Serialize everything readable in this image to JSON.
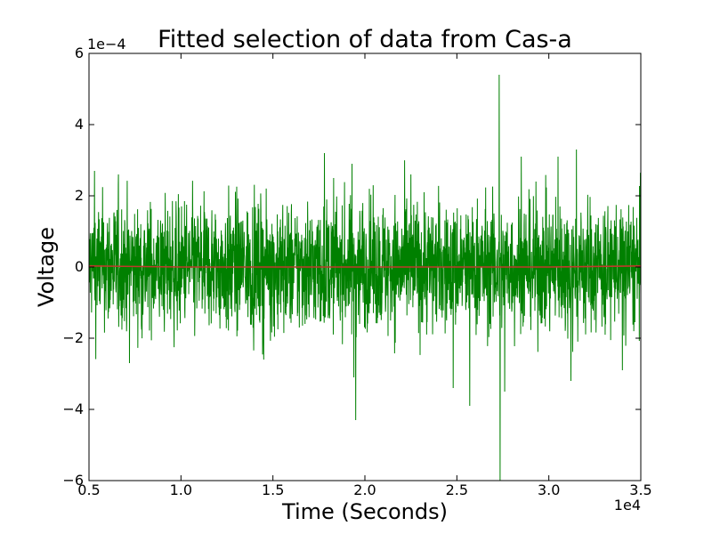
{
  "chart_data": {
    "type": "line",
    "title": "Fitted selection of data from Cas-a",
    "xlabel": "Time (Seconds)",
    "ylabel": "Voltage",
    "x_offset_label": "1e4",
    "y_offset_label": "1e−4",
    "xlim": [
      5000,
      35000
    ],
    "ylim": [
      -0.0006,
      0.0006
    ],
    "x_ticks": [
      5000,
      10000,
      15000,
      20000,
      25000,
      30000,
      35000
    ],
    "x_tick_labels": [
      "0.5",
      "1.0",
      "1.5",
      "2.0",
      "2.5",
      "3.0",
      "3.5"
    ],
    "y_ticks": [
      -0.0006,
      -0.0004,
      -0.0002,
      0,
      0.0002,
      0.0004,
      0.0006
    ],
    "y_tick_labels": [
      "−6",
      "−4",
      "−2",
      "0",
      "2",
      "4",
      "6"
    ],
    "grid": false,
    "series": [
      {
        "role": "data",
        "color": "#008000",
        "noise_band": [
          -0.00018,
          0.00018
        ],
        "spikes": [
          {
            "x": 5300,
            "y": 0.00027
          },
          {
            "x": 6600,
            "y": 0.00026
          },
          {
            "x": 7200,
            "y": -0.00027
          },
          {
            "x": 14500,
            "y": -0.00026
          },
          {
            "x": 17800,
            "y": 0.00032
          },
          {
            "x": 18300,
            "y": 0.00025
          },
          {
            "x": 19300,
            "y": 0.00029
          },
          {
            "x": 19400,
            "y": -0.00031
          },
          {
            "x": 19500,
            "y": -0.00043
          },
          {
            "x": 22500,
            "y": 0.00026
          },
          {
            "x": 24800,
            "y": -0.00034
          },
          {
            "x": 25700,
            "y": -0.00039
          },
          {
            "x": 27300,
            "y": 0.00054
          },
          {
            "x": 27350,
            "y": -0.0006
          },
          {
            "x": 27600,
            "y": -0.00035
          },
          {
            "x": 28500,
            "y": 0.00031
          },
          {
            "x": 30500,
            "y": 0.00031
          },
          {
            "x": 31200,
            "y": -0.00032
          },
          {
            "x": 31500,
            "y": 0.00033
          },
          {
            "x": 34000,
            "y": -0.00029
          }
        ]
      },
      {
        "role": "fit",
        "color": "#c0392b",
        "values_x": [
          5000,
          10000,
          15000,
          20000,
          25000,
          30000,
          35000
        ],
        "values_y": [
          3e-06,
          0.0,
          0.0,
          0.0,
          0.0,
          0.0,
          3e-06
        ]
      }
    ]
  }
}
